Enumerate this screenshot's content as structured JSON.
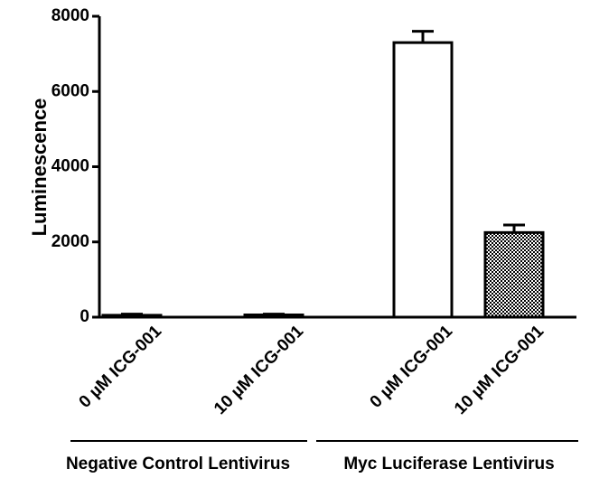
{
  "chart_data": {
    "type": "bar",
    "ylabel": "Luminescence",
    "categories": [
      "0 µM ICG-001",
      "10 µM ICG-001",
      "0 µM ICG-001",
      "10 µM ICG-001"
    ],
    "values": [
      50,
      60,
      7300,
      2250
    ],
    "errors": [
      30,
      20,
      300,
      200
    ],
    "fills": [
      "#ffffff",
      "#ffffff",
      "#ffffff",
      "checker"
    ],
    "groups": [
      {
        "label": "Negative Control Lentivirus",
        "members": [
          0,
          1
        ]
      },
      {
        "label": "Myc Luciferase Lentivirus",
        "members": [
          2,
          3
        ]
      }
    ],
    "ylim": [
      0,
      8000
    ],
    "yticks": [
      0,
      2000,
      4000,
      6000,
      8000
    ],
    "grid": false
  }
}
